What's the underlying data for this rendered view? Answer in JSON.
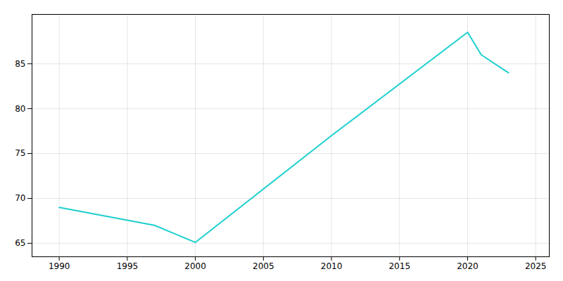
{
  "chart_data": {
    "type": "line",
    "x": [
      1990,
      1997,
      2000,
      2010,
      2020,
      2021,
      2023
    ],
    "values": [
      69.0,
      67.0,
      65.1,
      77.0,
      88.5,
      86.0,
      84.0
    ],
    "color": "#1ecfcf",
    "xlim": [
      1988,
      2026
    ],
    "xticks": [
      1990,
      1995,
      2000,
      2005,
      2010,
      2015,
      2020,
      2025
    ],
    "ylim": [
      63.5,
      90.5
    ],
    "yticks": [
      65,
      70,
      75,
      80,
      85
    ],
    "grid": true
  }
}
